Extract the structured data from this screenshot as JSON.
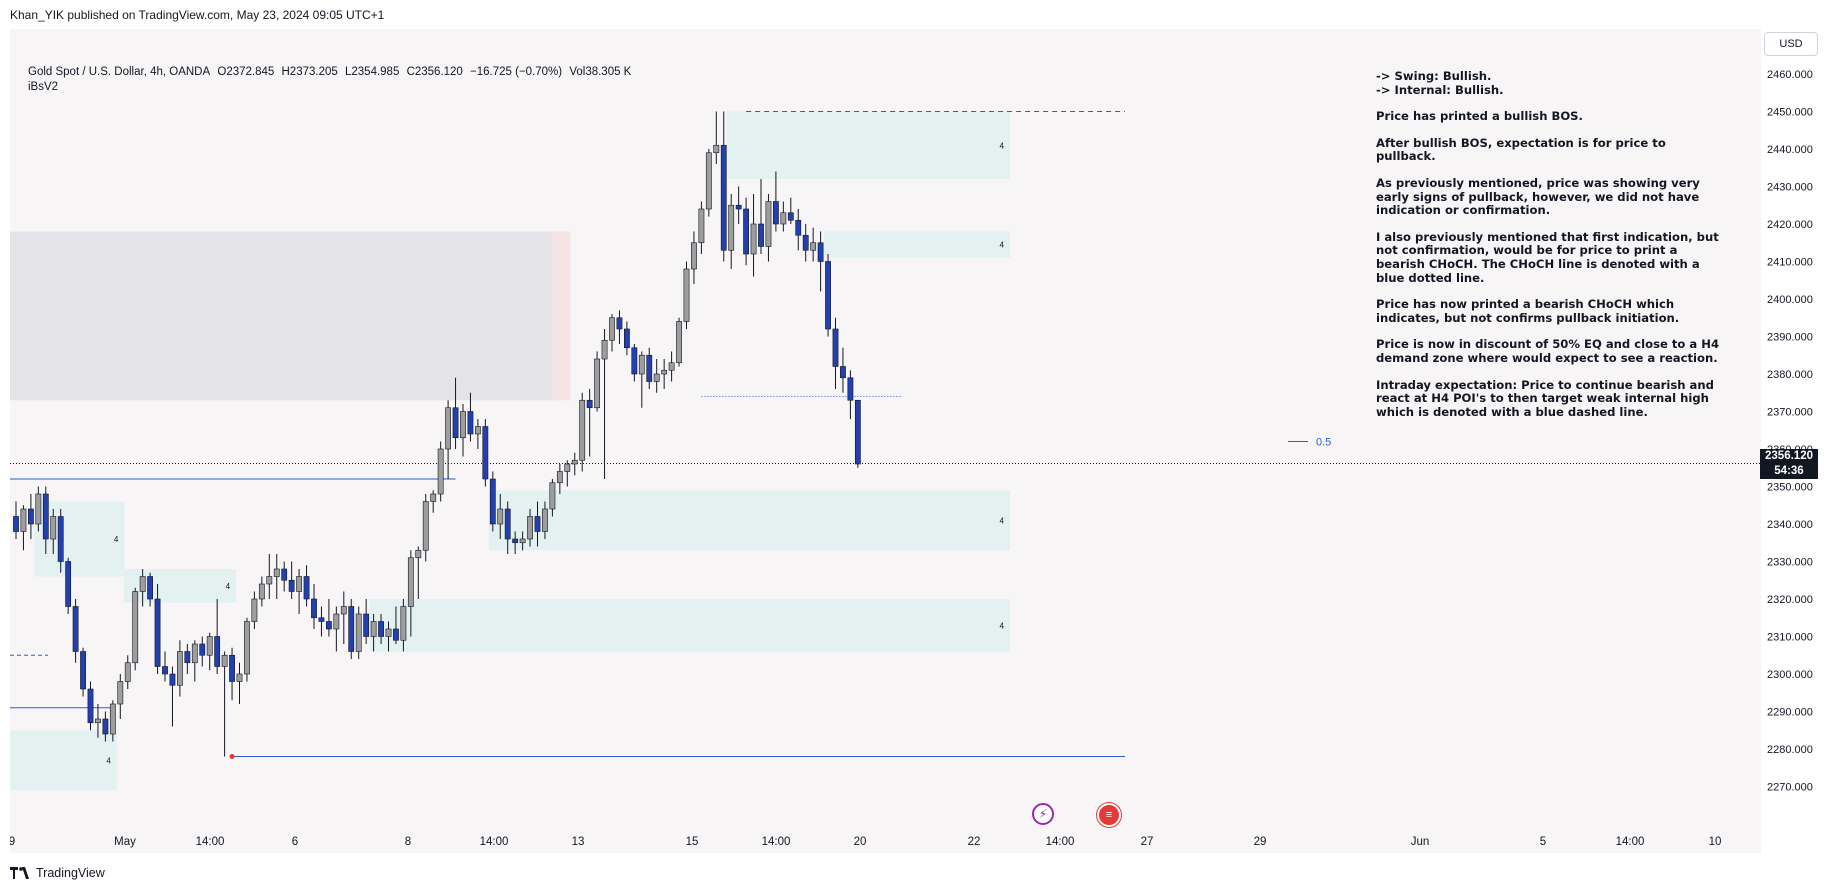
{
  "header": {
    "published": "Khan_YIK published on TradingView.com, May 23, 2024 09:05 UTC+1"
  },
  "legend": {
    "symbol": "Gold Spot / U.S. Dollar, 4h, OANDA",
    "open": "O2372.845",
    "high": "H2373.205",
    "low": "L2354.985",
    "close": "C2356.120",
    "change": "−16.725 (−0.70%)",
    "volume": "Vol38.305 K",
    "indicator": "iBsV2"
  },
  "annotation": {
    "swing": "-> Swing:  Bullish.",
    "internal": "-> Internal:  Bullish.",
    "paragraphs": [
      "Price has printed a bullish BOS.",
      "After bullish BOS, expectation is for price to pullback.",
      "As previously mentioned, price was showing very early signs of pullback, however, we did not have indication or confirmation.",
      "I also previously mentioned that first indication, but not confirmation, would be for price to print a bearish CHoCH.  The CHoCH line is denoted with a blue dotted line.",
      "Price has now printed a bearish CHoCH which indicates, but not confirms pullback initiation.",
      "Price is now in discount of 50% EQ and close to a H4 demand zone where would expect to see a reaction.",
      "Intraday expectation: Price to continue bearish and react at H4 POI's to then target weak internal high which is denoted with a blue dashed line."
    ]
  },
  "currency": "USD",
  "last_price": {
    "price": "2356.120",
    "countdown": "54:36"
  },
  "eq_label": "0.5",
  "zone_label": "4",
  "footer": {
    "brand": "TradingView"
  },
  "colors": {
    "bull_body": "#9e9e9e",
    "bear_body": "#2340b0",
    "zone_fill": "#e3f1f1",
    "supply_fill": "#e4e4e8",
    "line_blue": "#2a5cd8"
  },
  "chart_data": {
    "type": "candlestick",
    "timeframe": "4h",
    "y_axis": {
      "ticks": [
        2270,
        2280,
        2290,
        2300,
        2310,
        2320,
        2330,
        2340,
        2350,
        2360,
        2370,
        2380,
        2390,
        2400,
        2410,
        2420,
        2430,
        2440,
        2450,
        2460
      ],
      "tick_labels": [
        "2270.000",
        "2280.000",
        "2290.000",
        "2300.000",
        "2310.000",
        "2320.000",
        "2330.000",
        "2340.000",
        "2350.000",
        "2360.000",
        "2370.000",
        "2380.000",
        "2390.000",
        "2400.000",
        "2410.000",
        "2420.000",
        "2430.000",
        "2440.000",
        "2450.000",
        "2460.000"
      ],
      "range": [
        2264,
        2472
      ]
    },
    "x_axis": {
      "ticks": [
        "9",
        "May",
        "14:00",
        "6",
        "8",
        "14:00",
        "13",
        "15",
        "14:00",
        "20",
        "22",
        "14:00",
        "27",
        "29",
        "Jun",
        "5",
        "14:00",
        "10"
      ]
    },
    "candles": [
      {
        "o": 2342,
        "h": 2346,
        "l": 2336,
        "c": 2338
      },
      {
        "o": 2338,
        "h": 2345,
        "l": 2333,
        "c": 2344
      },
      {
        "o": 2344,
        "h": 2348,
        "l": 2336,
        "c": 2340
      },
      {
        "o": 2340,
        "h": 2350,
        "l": 2338,
        "c": 2348
      },
      {
        "o": 2348,
        "h": 2350,
        "l": 2332,
        "c": 2336
      },
      {
        "o": 2336,
        "h": 2344,
        "l": 2332,
        "c": 2342
      },
      {
        "o": 2342,
        "h": 2344,
        "l": 2327,
        "c": 2330
      },
      {
        "o": 2330,
        "h": 2331,
        "l": 2316,
        "c": 2318
      },
      {
        "o": 2318,
        "h": 2320,
        "l": 2303,
        "c": 2306
      },
      {
        "o": 2306,
        "h": 2307,
        "l": 2294,
        "c": 2296
      },
      {
        "o": 2296,
        "h": 2298,
        "l": 2285,
        "c": 2287
      },
      {
        "o": 2287,
        "h": 2292,
        "l": 2283,
        "c": 2288
      },
      {
        "o": 2288,
        "h": 2290,
        "l": 2282,
        "c": 2284
      },
      {
        "o": 2284,
        "h": 2293,
        "l": 2282,
        "c": 2292
      },
      {
        "o": 2292,
        "h": 2300,
        "l": 2288,
        "c": 2298
      },
      {
        "o": 2298,
        "h": 2305,
        "l": 2296,
        "c": 2303
      },
      {
        "o": 2303,
        "h": 2323,
        "l": 2301,
        "c": 2322
      },
      {
        "o": 2322,
        "h": 2328,
        "l": 2318,
        "c": 2326
      },
      {
        "o": 2326,
        "h": 2327,
        "l": 2318,
        "c": 2320
      },
      {
        "o": 2320,
        "h": 2324,
        "l": 2300,
        "c": 2302
      },
      {
        "o": 2302,
        "h": 2306,
        "l": 2298,
        "c": 2300
      },
      {
        "o": 2300,
        "h": 2302,
        "l": 2286,
        "c": 2297
      },
      {
        "o": 2297,
        "h": 2309,
        "l": 2294,
        "c": 2306
      },
      {
        "o": 2306,
        "h": 2308,
        "l": 2300,
        "c": 2303
      },
      {
        "o": 2303,
        "h": 2309,
        "l": 2298,
        "c": 2308
      },
      {
        "o": 2308,
        "h": 2310,
        "l": 2302,
        "c": 2305
      },
      {
        "o": 2305,
        "h": 2311,
        "l": 2301,
        "c": 2310
      },
      {
        "o": 2310,
        "h": 2320,
        "l": 2300,
        "c": 2302
      },
      {
        "o": 2302,
        "h": 2306,
        "l": 2278,
        "c": 2305
      },
      {
        "o": 2305,
        "h": 2307,
        "l": 2293,
        "c": 2298
      },
      {
        "o": 2298,
        "h": 2303,
        "l": 2292,
        "c": 2300
      },
      {
        "o": 2300,
        "h": 2315,
        "l": 2298,
        "c": 2314
      },
      {
        "o": 2314,
        "h": 2322,
        "l": 2312,
        "c": 2320
      },
      {
        "o": 2320,
        "h": 2326,
        "l": 2318,
        "c": 2324
      },
      {
        "o": 2324,
        "h": 2332,
        "l": 2320,
        "c": 2326
      },
      {
        "o": 2326,
        "h": 2332,
        "l": 2320,
        "c": 2328
      },
      {
        "o": 2328,
        "h": 2330,
        "l": 2322,
        "c": 2325
      },
      {
        "o": 2325,
        "h": 2330,
        "l": 2320,
        "c": 2322
      },
      {
        "o": 2322,
        "h": 2328,
        "l": 2316,
        "c": 2326
      },
      {
        "o": 2326,
        "h": 2329,
        "l": 2318,
        "c": 2320
      },
      {
        "o": 2320,
        "h": 2324,
        "l": 2312,
        "c": 2315
      },
      {
        "o": 2315,
        "h": 2318,
        "l": 2310,
        "c": 2314
      },
      {
        "o": 2314,
        "h": 2320,
        "l": 2310,
        "c": 2312
      },
      {
        "o": 2312,
        "h": 2318,
        "l": 2306,
        "c": 2316
      },
      {
        "o": 2316,
        "h": 2322,
        "l": 2308,
        "c": 2318
      },
      {
        "o": 2318,
        "h": 2320,
        "l": 2304,
        "c": 2306
      },
      {
        "o": 2306,
        "h": 2318,
        "l": 2304,
        "c": 2316
      },
      {
        "o": 2316,
        "h": 2320,
        "l": 2308,
        "c": 2310
      },
      {
        "o": 2310,
        "h": 2316,
        "l": 2306,
        "c": 2314
      },
      {
        "o": 2314,
        "h": 2316,
        "l": 2308,
        "c": 2310
      },
      {
        "o": 2310,
        "h": 2314,
        "l": 2306,
        "c": 2312
      },
      {
        "o": 2312,
        "h": 2318,
        "l": 2308,
        "c": 2309
      },
      {
        "o": 2309,
        "h": 2320,
        "l": 2306,
        "c": 2318
      },
      {
        "o": 2318,
        "h": 2333,
        "l": 2310,
        "c": 2331
      },
      {
        "o": 2331,
        "h": 2334,
        "l": 2320,
        "c": 2333
      },
      {
        "o": 2333,
        "h": 2348,
        "l": 2330,
        "c": 2346
      },
      {
        "o": 2346,
        "h": 2349,
        "l": 2343,
        "c": 2348
      },
      {
        "o": 2348,
        "h": 2362,
        "l": 2346,
        "c": 2360
      },
      {
        "o": 2360,
        "h": 2373,
        "l": 2352,
        "c": 2371
      },
      {
        "o": 2371,
        "h": 2379,
        "l": 2360,
        "c": 2363
      },
      {
        "o": 2363,
        "h": 2372,
        "l": 2358,
        "c": 2370
      },
      {
        "o": 2370,
        "h": 2375,
        "l": 2362,
        "c": 2364
      },
      {
        "o": 2364,
        "h": 2368,
        "l": 2360,
        "c": 2366
      },
      {
        "o": 2366,
        "h": 2368,
        "l": 2350,
        "c": 2352
      },
      {
        "o": 2352,
        "h": 2354,
        "l": 2338,
        "c": 2340
      },
      {
        "o": 2340,
        "h": 2348,
        "l": 2336,
        "c": 2344
      },
      {
        "o": 2344,
        "h": 2346,
        "l": 2332,
        "c": 2336
      },
      {
        "o": 2336,
        "h": 2338,
        "l": 2332,
        "c": 2335
      },
      {
        "o": 2335,
        "h": 2338,
        "l": 2333,
        "c": 2336
      },
      {
        "o": 2336,
        "h": 2344,
        "l": 2334,
        "c": 2342
      },
      {
        "o": 2342,
        "h": 2346,
        "l": 2334,
        "c": 2338
      },
      {
        "o": 2338,
        "h": 2346,
        "l": 2336,
        "c": 2344
      },
      {
        "o": 2344,
        "h": 2352,
        "l": 2342,
        "c": 2351
      },
      {
        "o": 2351,
        "h": 2356,
        "l": 2348,
        "c": 2354
      },
      {
        "o": 2354,
        "h": 2357,
        "l": 2350,
        "c": 2356
      },
      {
        "o": 2356,
        "h": 2359,
        "l": 2353,
        "c": 2357
      },
      {
        "o": 2357,
        "h": 2375,
        "l": 2354,
        "c": 2373
      },
      {
        "o": 2373,
        "h": 2376,
        "l": 2358,
        "c": 2371
      },
      {
        "o": 2371,
        "h": 2386,
        "l": 2370,
        "c": 2384
      },
      {
        "o": 2384,
        "h": 2392,
        "l": 2352,
        "c": 2389
      },
      {
        "o": 2389,
        "h": 2396,
        "l": 2386,
        "c": 2395
      },
      {
        "o": 2395,
        "h": 2397,
        "l": 2388,
        "c": 2392
      },
      {
        "o": 2392,
        "h": 2394,
        "l": 2385,
        "c": 2387
      },
      {
        "o": 2387,
        "h": 2388,
        "l": 2378,
        "c": 2380
      },
      {
        "o": 2380,
        "h": 2386,
        "l": 2371,
        "c": 2385
      },
      {
        "o": 2385,
        "h": 2387,
        "l": 2376,
        "c": 2378
      },
      {
        "o": 2378,
        "h": 2384,
        "l": 2375,
        "c": 2380
      },
      {
        "o": 2380,
        "h": 2384,
        "l": 2376,
        "c": 2381
      },
      {
        "o": 2381,
        "h": 2386,
        "l": 2378,
        "c": 2383
      },
      {
        "o": 2383,
        "h": 2395,
        "l": 2382,
        "c": 2394
      },
      {
        "o": 2394,
        "h": 2410,
        "l": 2392,
        "c": 2408
      },
      {
        "o": 2408,
        "h": 2418,
        "l": 2404,
        "c": 2415
      },
      {
        "o": 2415,
        "h": 2426,
        "l": 2412,
        "c": 2424
      },
      {
        "o": 2424,
        "h": 2440,
        "l": 2422,
        "c": 2439
      },
      {
        "o": 2439,
        "h": 2450,
        "l": 2436,
        "c": 2441
      },
      {
        "o": 2441,
        "h": 2450,
        "l": 2410,
        "c": 2413
      },
      {
        "o": 2413,
        "h": 2428,
        "l": 2408,
        "c": 2425
      },
      {
        "o": 2425,
        "h": 2430,
        "l": 2420,
        "c": 2424
      },
      {
        "o": 2424,
        "h": 2427,
        "l": 2409,
        "c": 2412
      },
      {
        "o": 2412,
        "h": 2428,
        "l": 2406,
        "c": 2420
      },
      {
        "o": 2420,
        "h": 2432,
        "l": 2412,
        "c": 2414
      },
      {
        "o": 2414,
        "h": 2428,
        "l": 2410,
        "c": 2426
      },
      {
        "o": 2426,
        "h": 2434,
        "l": 2418,
        "c": 2420
      },
      {
        "o": 2420,
        "h": 2426,
        "l": 2418,
        "c": 2423
      },
      {
        "o": 2423,
        "h": 2427,
        "l": 2420,
        "c": 2421
      },
      {
        "o": 2421,
        "h": 2424,
        "l": 2413,
        "c": 2417
      },
      {
        "o": 2417,
        "h": 2420,
        "l": 2410,
        "c": 2413
      },
      {
        "o": 2413,
        "h": 2419,
        "l": 2410,
        "c": 2415
      },
      {
        "o": 2415,
        "h": 2418,
        "l": 2402,
        "c": 2410
      },
      {
        "o": 2410,
        "h": 2412,
        "l": 2390,
        "c": 2392
      },
      {
        "o": 2392,
        "h": 2395,
        "l": 2376,
        "c": 2382
      },
      {
        "o": 2382,
        "h": 2387,
        "l": 2375,
        "c": 2379
      },
      {
        "o": 2379,
        "h": 2381,
        "l": 2368,
        "c": 2373
      },
      {
        "o": 2373,
        "h": 2373,
        "l": 2355,
        "c": 2356
      }
    ],
    "zones": [
      {
        "label": "supply",
        "from_candle": 0,
        "to_candle": 72,
        "top": 2418,
        "bottom": 2373
      },
      {
        "label": "4",
        "from_candle": 96,
        "to_candle": 120,
        "top": 2450,
        "bottom": 2432
      },
      {
        "label": "4",
        "from_candle": 109,
        "to_candle": 120,
        "top": 2418,
        "bottom": 2411
      },
      {
        "label": "4",
        "from_candle": 64,
        "to_candle": 120,
        "top": 2349,
        "bottom": 2333
      },
      {
        "label": "4",
        "from_candle": 48,
        "to_candle": 120,
        "top": 2320,
        "bottom": 2306
      },
      {
        "label": "4",
        "from_candle": 3,
        "to_candle": 14,
        "top": 2346,
        "bottom": 2326
      },
      {
        "label": "4",
        "from_candle": 15,
        "to_candle": 29,
        "top": 2328,
        "bottom": 2319
      },
      {
        "label": "4",
        "from_candle": 0,
        "to_candle": 13,
        "top": 2285,
        "bottom": 2269
      }
    ],
    "lines": [
      {
        "kind": "dashed",
        "price": 2450,
        "note": "weak internal high"
      },
      {
        "kind": "dotted",
        "price": 2374,
        "note": "CHoCH"
      },
      {
        "kind": "solid",
        "price": 2278,
        "note": "low"
      },
      {
        "kind": "solid",
        "price": 2352,
        "note": "BOS"
      },
      {
        "kind": "solid",
        "price": 2362,
        "note": "0.5"
      },
      {
        "kind": "dotted",
        "price": 2356.12,
        "note": "last price"
      }
    ]
  }
}
